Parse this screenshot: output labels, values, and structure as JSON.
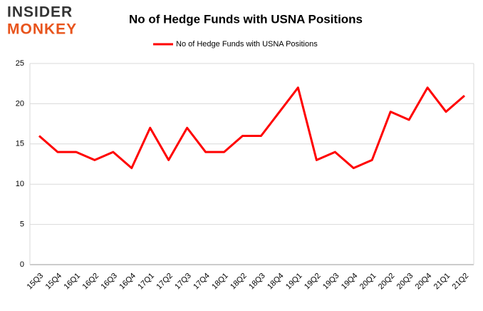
{
  "logo": {
    "line1": "INSIDER",
    "line2": "MONKEY"
  },
  "chart_data": {
    "type": "line",
    "title": "No of Hedge Funds with USNA Positions",
    "categories": [
      "15Q3",
      "15Q4",
      "16Q1",
      "16Q2",
      "16Q3",
      "16Q4",
      "17Q1",
      "17Q2",
      "17Q3",
      "17Q4",
      "18Q1",
      "18Q2",
      "18Q3",
      "18Q4",
      "19Q1",
      "19Q2",
      "19Q3",
      "19Q4",
      "20Q1",
      "20Q2",
      "20Q3",
      "20Q4",
      "21Q1",
      "21Q2"
    ],
    "series": [
      {
        "name": "No of Hedge Funds with USNA Positions",
        "color": "#ff0000",
        "values": [
          16,
          14,
          14,
          13,
          14,
          12,
          17,
          13,
          17,
          14,
          14,
          16,
          16,
          19,
          22,
          13,
          14,
          12,
          13,
          19,
          18,
          22,
          19,
          21
        ]
      }
    ],
    "ylim": [
      0,
      25
    ],
    "yticks": [
      0,
      5,
      10,
      15,
      20,
      25
    ],
    "grid": true,
    "legend": "top"
  }
}
